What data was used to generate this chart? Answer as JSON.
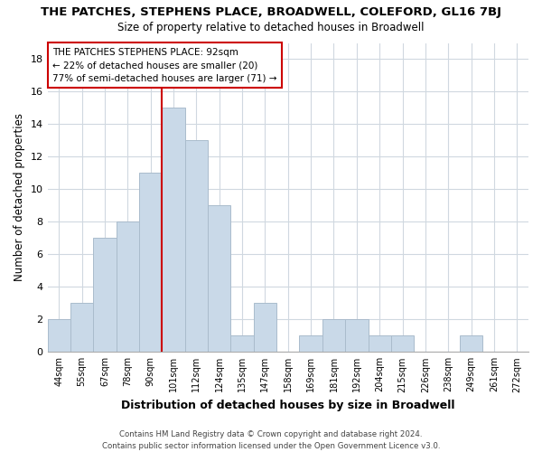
{
  "title": "THE PATCHES, STEPHENS PLACE, BROADWELL, COLEFORD, GL16 7BJ",
  "subtitle": "Size of property relative to detached houses in Broadwell",
  "xlabel": "Distribution of detached houses by size in Broadwell",
  "ylabel": "Number of detached properties",
  "footer_line1": "Contains HM Land Registry data © Crown copyright and database right 2024.",
  "footer_line2": "Contains public sector information licensed under the Open Government Licence v3.0.",
  "bin_labels": [
    "44sqm",
    "55sqm",
    "67sqm",
    "78sqm",
    "90sqm",
    "101sqm",
    "112sqm",
    "124sqm",
    "135sqm",
    "147sqm",
    "158sqm",
    "169sqm",
    "181sqm",
    "192sqm",
    "204sqm",
    "215sqm",
    "226sqm",
    "238sqm",
    "249sqm",
    "261sqm",
    "272sqm"
  ],
  "bar_heights": [
    2,
    3,
    7,
    8,
    11,
    15,
    13,
    9,
    1,
    3,
    0,
    1,
    2,
    2,
    1,
    1,
    0,
    0,
    1,
    0,
    0
  ],
  "bar_color": "#c9d9e8",
  "bar_edge_color": "#aabccc",
  "marker_line_color": "#cc0000",
  "annotation_text_line1": "THE PATCHES STEPHENS PLACE: 92sqm",
  "annotation_text_line2": "← 22% of detached houses are smaller (20)",
  "annotation_text_line3": "77% of semi-detached houses are larger (71) →",
  "ylim": [
    0,
    19
  ],
  "yticks": [
    0,
    2,
    4,
    6,
    8,
    10,
    12,
    14,
    16,
    18
  ],
  "background_color": "#ffffff",
  "grid_color": "#d0d8e0"
}
